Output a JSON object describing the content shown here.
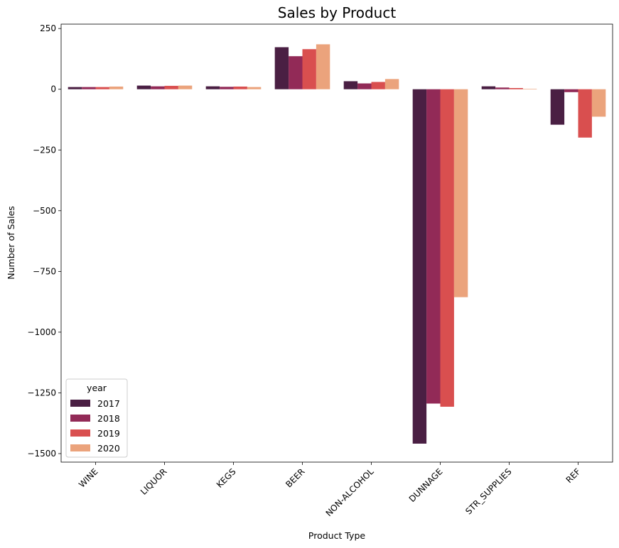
{
  "chart_data": {
    "type": "bar",
    "title": "Sales by Product",
    "xlabel": "Product Type",
    "ylabel": "Number of Sales",
    "ylim": [
      -1535,
      268
    ],
    "yticks": [
      250,
      0,
      -250,
      -500,
      -750,
      -1000,
      -1250,
      -1500
    ],
    "ytick_labels": [
      "250",
      "0",
      "−250",
      "−500",
      "−750",
      "−1000",
      "−1250",
      "−1500"
    ],
    "categories": [
      "WINE",
      "LIQUOR",
      "KEGS",
      "BEER",
      "NON-ALCOHOL",
      "DUNNAGE",
      "STR_SUPPLIES",
      "REF"
    ],
    "legend": {
      "title": "year",
      "position": "lower-left"
    },
    "grid": false,
    "series": [
      {
        "name": "2017",
        "color": "#4a1f43",
        "values": [
          9,
          15,
          12,
          173,
          33,
          -1459,
          12,
          -146
        ]
      },
      {
        "name": "2018",
        "color": "#922a57",
        "values": [
          9,
          12,
          10,
          136,
          24,
          -1294,
          7,
          -12
        ]
      },
      {
        "name": "2019",
        "color": "#d94f4f",
        "values": [
          9,
          14,
          11,
          165,
          30,
          -1307,
          5,
          -199
        ]
      },
      {
        "name": "2020",
        "color": "#eba37c",
        "values": [
          11,
          15,
          9,
          185,
          42,
          -856,
          2,
          -113
        ]
      }
    ]
  }
}
